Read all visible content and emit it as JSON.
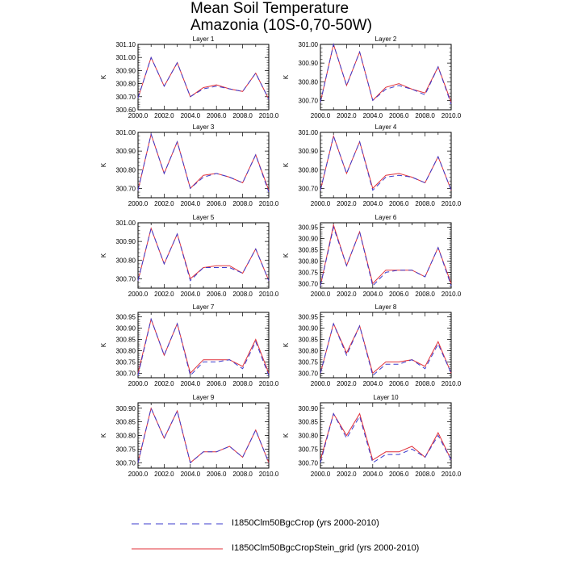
{
  "figure": {
    "title_line1": "Mean Soil Temperature",
    "title_line2": "Amazonia (10S-0,70-50W)"
  },
  "colors": {
    "series1": "#3b3bcc",
    "series2": "#e0303a"
  },
  "legend": [
    {
      "label": "I1850Clm50BgcCrop (yrs 2000-2010)",
      "style": "dashed",
      "color": "#3b3bcc"
    },
    {
      "label": "I1850Clm50BgcCropStein_grid (yrs 2000-2010)",
      "style": "solid",
      "color": "#e0303a"
    }
  ],
  "chart_data": [
    {
      "type": "line",
      "title": "Layer 1",
      "ylabel": "K",
      "xlim": [
        2000,
        2010
      ],
      "ylim": [
        300.6,
        301.1
      ],
      "xticks": [
        "2000.0",
        "2002.0",
        "2004.0",
        "2006.0",
        "2008.0",
        "2010.0"
      ],
      "yticks": [
        "300.60",
        "300.70",
        "300.80",
        "300.90",
        "301.00",
        "301.10"
      ],
      "x": [
        2000,
        2001,
        2002,
        2003,
        2004,
        2005,
        2006,
        2007,
        2008,
        2009,
        2010
      ],
      "series": [
        {
          "name": "I1850Clm50BgcCrop (yrs 2000-2010)",
          "values": [
            300.69,
            301.0,
            300.78,
            300.96,
            300.7,
            300.76,
            300.78,
            300.76,
            300.74,
            300.88,
            300.68
          ]
        },
        {
          "name": "I1850Clm50BgcCropStein_grid (yrs 2000-2010)",
          "values": [
            300.69,
            301.0,
            300.78,
            300.96,
            300.7,
            300.77,
            300.79,
            300.76,
            300.74,
            300.88,
            300.68
          ]
        }
      ]
    },
    {
      "type": "line",
      "title": "Layer 2",
      "ylabel": "K",
      "xlim": [
        2000,
        2010
      ],
      "ylim": [
        300.65,
        301.0
      ],
      "xticks": [
        "2000.0",
        "2002.0",
        "2004.0",
        "2006.0",
        "2008.0",
        "2010.0"
      ],
      "yticks": [
        "300.70",
        "300.80",
        "300.90",
        "301.00"
      ],
      "x": [
        2000,
        2001,
        2002,
        2003,
        2004,
        2005,
        2006,
        2007,
        2008,
        2009,
        2010
      ],
      "series": [
        {
          "name": "I1850Clm50BgcCrop (yrs 2000-2010)",
          "values": [
            300.69,
            301.0,
            300.78,
            300.96,
            300.7,
            300.76,
            300.78,
            300.76,
            300.73,
            300.88,
            300.68
          ]
        },
        {
          "name": "I1850Clm50BgcCropStein_grid (yrs 2000-2010)",
          "values": [
            300.69,
            301.0,
            300.78,
            300.96,
            300.7,
            300.77,
            300.79,
            300.76,
            300.74,
            300.88,
            300.69
          ]
        }
      ]
    },
    {
      "type": "line",
      "title": "Layer 3",
      "ylabel": "K",
      "xlim": [
        2000,
        2010
      ],
      "ylim": [
        300.65,
        301.0
      ],
      "xticks": [
        "2000.0",
        "2002.0",
        "2004.0",
        "2006.0",
        "2008.0",
        "2010.0"
      ],
      "yticks": [
        "300.70",
        "300.80",
        "300.90",
        "301.00"
      ],
      "x": [
        2000,
        2001,
        2002,
        2003,
        2004,
        2005,
        2006,
        2007,
        2008,
        2009,
        2010
      ],
      "series": [
        {
          "name": "I1850Clm50BgcCrop (yrs 2000-2010)",
          "values": [
            300.69,
            300.99,
            300.78,
            300.95,
            300.7,
            300.76,
            300.78,
            300.76,
            300.73,
            300.88,
            300.68
          ]
        },
        {
          "name": "I1850Clm50BgcCropStein_grid (yrs 2000-2010)",
          "values": [
            300.69,
            300.99,
            300.78,
            300.95,
            300.7,
            300.77,
            300.78,
            300.76,
            300.73,
            300.88,
            300.69
          ]
        }
      ]
    },
    {
      "type": "line",
      "title": "Layer 4",
      "ylabel": "K",
      "xlim": [
        2000,
        2010
      ],
      "ylim": [
        300.65,
        301.0
      ],
      "xticks": [
        "2000.0",
        "2002.0",
        "2004.0",
        "2006.0",
        "2008.0",
        "2010.0"
      ],
      "yticks": [
        "300.70",
        "300.80",
        "300.90",
        "301.00"
      ],
      "x": [
        2000,
        2001,
        2002,
        2003,
        2004,
        2005,
        2006,
        2007,
        2008,
        2009,
        2010
      ],
      "series": [
        {
          "name": "I1850Clm50BgcCrop (yrs 2000-2010)",
          "values": [
            300.69,
            300.98,
            300.78,
            300.95,
            300.69,
            300.76,
            300.77,
            300.76,
            300.73,
            300.87,
            300.69
          ]
        },
        {
          "name": "I1850Clm50BgcCropStein_grid (yrs 2000-2010)",
          "values": [
            300.69,
            300.98,
            300.78,
            300.95,
            300.7,
            300.77,
            300.78,
            300.76,
            300.73,
            300.87,
            300.69
          ]
        }
      ]
    },
    {
      "type": "line",
      "title": "Layer 5",
      "ylabel": "K",
      "xlim": [
        2000,
        2010
      ],
      "ylim": [
        300.65,
        301.0
      ],
      "xticks": [
        "2000.0",
        "2002.0",
        "2004.0",
        "2006.0",
        "2008.0",
        "2010.0"
      ],
      "yticks": [
        "300.70",
        "300.80",
        "300.90",
        "301.00"
      ],
      "x": [
        2000,
        2001,
        2002,
        2003,
        2004,
        2005,
        2006,
        2007,
        2008,
        2009,
        2010
      ],
      "series": [
        {
          "name": "I1850Clm50BgcCrop (yrs 2000-2010)",
          "values": [
            300.69,
            300.97,
            300.78,
            300.94,
            300.69,
            300.76,
            300.76,
            300.76,
            300.73,
            300.86,
            300.69
          ]
        },
        {
          "name": "I1850Clm50BgcCropStein_grid (yrs 2000-2010)",
          "values": [
            300.69,
            300.97,
            300.78,
            300.94,
            300.7,
            300.76,
            300.77,
            300.77,
            300.73,
            300.86,
            300.69
          ]
        }
      ]
    },
    {
      "type": "line",
      "title": "Layer 6",
      "ylabel": "K",
      "xlim": [
        2000,
        2010
      ],
      "ylim": [
        300.68,
        300.97
      ],
      "xticks": [
        "2000.0",
        "2002.0",
        "2004.0",
        "2006.0",
        "2008.0",
        "2010.0"
      ],
      "yticks": [
        "300.70",
        "300.75",
        "300.80",
        "300.85",
        "300.90",
        "300.95"
      ],
      "x": [
        2000,
        2001,
        2002,
        2003,
        2004,
        2005,
        2006,
        2007,
        2008,
        2009,
        2010
      ],
      "series": [
        {
          "name": "I1850Clm50BgcCrop (yrs 2000-2010)",
          "values": [
            300.69,
            300.95,
            300.78,
            300.93,
            300.69,
            300.75,
            300.76,
            300.76,
            300.73,
            300.86,
            300.69
          ]
        },
        {
          "name": "I1850Clm50BgcCropStein_grid (yrs 2000-2010)",
          "values": [
            300.69,
            300.96,
            300.78,
            300.93,
            300.7,
            300.76,
            300.76,
            300.76,
            300.73,
            300.86,
            300.7
          ]
        }
      ]
    },
    {
      "type": "line",
      "title": "Layer 7",
      "ylabel": "K",
      "xlim": [
        2000,
        2010
      ],
      "ylim": [
        300.68,
        300.97
      ],
      "xticks": [
        "2000.0",
        "2002.0",
        "2004.0",
        "2006.0",
        "2008.0",
        "2010.0"
      ],
      "yticks": [
        "300.70",
        "300.75",
        "300.80",
        "300.85",
        "300.90",
        "300.95"
      ],
      "x": [
        2000,
        2001,
        2002,
        2003,
        2004,
        2005,
        2006,
        2007,
        2008,
        2009,
        2010
      ],
      "series": [
        {
          "name": "I1850Clm50BgcCrop (yrs 2000-2010)",
          "values": [
            300.69,
            300.94,
            300.78,
            300.92,
            300.69,
            300.75,
            300.75,
            300.76,
            300.72,
            300.84,
            300.69
          ]
        },
        {
          "name": "I1850Clm50BgcCropStein_grid (yrs 2000-2010)",
          "values": [
            300.7,
            300.94,
            300.78,
            300.92,
            300.7,
            300.76,
            300.76,
            300.76,
            300.73,
            300.85,
            300.7
          ]
        }
      ]
    },
    {
      "type": "line",
      "title": "Layer 8",
      "ylabel": "K",
      "xlim": [
        2000,
        2010
      ],
      "ylim": [
        300.68,
        300.97
      ],
      "xticks": [
        "2000.0",
        "2002.0",
        "2004.0",
        "2006.0",
        "2008.0",
        "2010.0"
      ],
      "yticks": [
        "300.70",
        "300.75",
        "300.80",
        "300.85",
        "300.90",
        "300.95"
      ],
      "x": [
        2000,
        2001,
        2002,
        2003,
        2004,
        2005,
        2006,
        2007,
        2008,
        2009,
        2010
      ],
      "series": [
        {
          "name": "I1850Clm50BgcCrop (yrs 2000-2010)",
          "values": [
            300.7,
            300.92,
            300.78,
            300.91,
            300.69,
            300.74,
            300.74,
            300.76,
            300.72,
            300.83,
            300.7
          ]
        },
        {
          "name": "I1850Clm50BgcCropStein_grid (yrs 2000-2010)",
          "values": [
            300.7,
            300.92,
            300.79,
            300.91,
            300.7,
            300.75,
            300.75,
            300.76,
            300.73,
            300.84,
            300.7
          ]
        }
      ]
    },
    {
      "type": "line",
      "title": "Layer 9",
      "ylabel": "K",
      "xlim": [
        2000,
        2010
      ],
      "ylim": [
        300.68,
        300.92
      ],
      "xticks": [
        "2000.0",
        "2002.0",
        "2004.0",
        "2006.0",
        "2008.0",
        "2010.0"
      ],
      "yticks": [
        "300.70",
        "300.75",
        "300.80",
        "300.85",
        "300.90"
      ],
      "x": [
        2000,
        2001,
        2002,
        2003,
        2004,
        2005,
        2006,
        2007,
        2008,
        2009,
        2010
      ],
      "series": [
        {
          "name": "I1850Clm50BgcCrop (yrs 2000-2010)",
          "values": [
            300.7,
            300.9,
            300.79,
            300.89,
            300.7,
            300.74,
            300.74,
            300.76,
            300.72,
            300.82,
            300.7
          ]
        },
        {
          "name": "I1850Clm50BgcCropStein_grid (yrs 2000-2010)",
          "values": [
            300.7,
            300.9,
            300.79,
            300.89,
            300.7,
            300.74,
            300.74,
            300.76,
            300.72,
            300.82,
            300.7
          ]
        }
      ]
    },
    {
      "type": "line",
      "title": "Layer 10",
      "ylabel": "K",
      "xlim": [
        2000,
        2010
      ],
      "ylim": [
        300.68,
        300.92
      ],
      "xticks": [
        "2000.0",
        "2002.0",
        "2004.0",
        "2006.0",
        "2008.0",
        "2010.0"
      ],
      "yticks": [
        "300.70",
        "300.75",
        "300.80",
        "300.85",
        "300.90"
      ],
      "x": [
        2000,
        2001,
        2002,
        2003,
        2004,
        2005,
        2006,
        2007,
        2008,
        2009,
        2010
      ],
      "series": [
        {
          "name": "I1850Clm50BgcCrop (yrs 2000-2010)",
          "values": [
            300.7,
            300.88,
            300.79,
            300.87,
            300.7,
            300.73,
            300.73,
            300.75,
            300.72,
            300.8,
            300.71
          ]
        },
        {
          "name": "I1850Clm50BgcCropStein_grid (yrs 2000-2010)",
          "values": [
            300.71,
            300.88,
            300.8,
            300.88,
            300.71,
            300.74,
            300.74,
            300.76,
            300.72,
            300.81,
            300.71
          ]
        }
      ]
    }
  ]
}
